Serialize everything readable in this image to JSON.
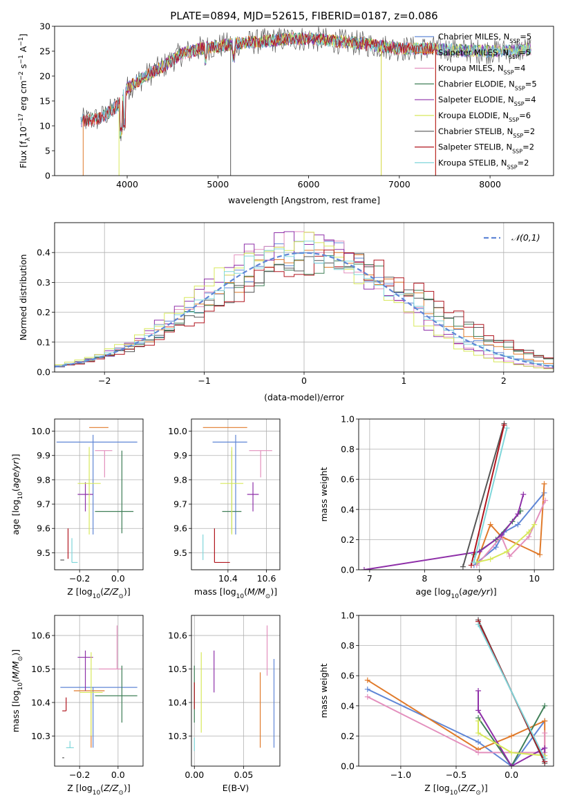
{
  "title": "PLATE=0894, MJD=52615, FIBERID=0187, z=0.086",
  "colors": {
    "chabrier_miles": "#5f86d6",
    "salpeter_miles": "#e07a2a",
    "kroupa_miles": "#e38fbd",
    "chabrier_elodie": "#3f7f57",
    "salpeter_elodie": "#8e2fa8",
    "kroupa_elodie": "#d7e85a",
    "chabrier_stelib": "#555555",
    "salpeter_stelib": "#b0151e",
    "kroupa_stelib": "#7fd6da",
    "normal_curve": "#5f86d6",
    "grid": "#b0b0b0"
  },
  "chart_data": [
    {
      "id": "spectrum",
      "type": "line",
      "title": "PLATE=0894, MJD=52615, FIBERID=0187, z=0.086",
      "xlabel": "wavelength [Angstrom, rest frame]",
      "ylabel": "Flux [f_λ10^-17 erg cm^-2 s^-1 A^-1]",
      "xlim": [
        3200,
        8700
      ],
      "ylim": [
        0,
        30
      ],
      "xticks": [
        4000,
        5000,
        6000,
        7000,
        8000
      ],
      "yticks": [
        0,
        5,
        10,
        15,
        20,
        25,
        30
      ],
      "grid": false,
      "legend_position": "right",
      "series": [
        {
          "name": "Chabrier MILES, N_SSP=5",
          "n_ssp": "5"
        },
        {
          "name": "Salpeter MILES, N_SSP=5",
          "n_ssp": "5"
        },
        {
          "name": "Kroupa MILES, N_SSP=4",
          "n_ssp": "4"
        },
        {
          "name": "Chabrier ELODIE, N_SSP=5",
          "n_ssp": "5"
        },
        {
          "name": "Salpeter ELODIE, N_SSP=4",
          "n_ssp": "4"
        },
        {
          "name": "Kroupa ELODIE, N_SSP=6",
          "n_ssp": "6"
        },
        {
          "name": "Chabrier STELIB, N_SSP=2",
          "n_ssp": "2"
        },
        {
          "name": "Salpeter STELIB, N_SSP=2",
          "n_ssp": "2"
        },
        {
          "name": "Kroupa STELIB, N_SSP=2",
          "n_ssp": "2"
        }
      ],
      "continuum": {
        "x": [
          3500,
          3700,
          3900,
          4000,
          4200,
          4400,
          4600,
          4800,
          5000,
          5200,
          5500,
          5800,
          6000,
          6300,
          6600,
          7000,
          7400,
          7800,
          8200,
          8450
        ],
        "y": [
          11,
          11.5,
          14,
          17.5,
          20,
          22,
          24.5,
          25.5,
          26,
          26.5,
          27,
          27.5,
          27.5,
          27,
          26.5,
          25.5,
          25.5,
          25,
          25,
          25.5
        ]
      },
      "gaps_x": [
        3510,
        3910,
        5140,
        6800,
        7400
      ]
    },
    {
      "id": "residuals",
      "type": "histogram",
      "xlabel": "(data-model)/error",
      "ylabel": "Normed distribution",
      "xlim": [
        -2.5,
        2.5
      ],
      "ylim": [
        0,
        0.5
      ],
      "xticks": [
        -2,
        -1,
        0,
        1,
        2
      ],
      "yticks": [
        0.0,
        0.1,
        0.2,
        0.3,
        0.4
      ],
      "grid": true,
      "legend_position": "top-right",
      "legend": "𝒩(0,1)",
      "bin_width": 0.1
    },
    {
      "id": "age_vs_Z",
      "type": "errorbar",
      "xlabel": "Z [log10(Z/Z⊙)]",
      "ylabel": "age  [log10(age/yr)]",
      "xlim": [
        -0.33,
        0.13
      ],
      "ylim": [
        9.43,
        10.05
      ],
      "xticks": [
        -0.2,
        0.0
      ],
      "yticks": [
        9.5,
        9.6,
        9.7,
        9.8,
        9.9,
        10.0
      ],
      "grid": true,
      "points": [
        {
          "x": -0.13,
          "y": 9.955,
          "xerr": [
            0.19,
            0.23
          ],
          "yerr": [
            0.38,
            0.03
          ],
          "color": "#5f86d6"
        },
        {
          "x": -0.11,
          "y": 10.015,
          "xerr": [
            0.04,
            0.06
          ],
          "yerr": [
            0.0,
            0.0
          ],
          "color": "#e07a2a"
        },
        {
          "x": -0.07,
          "y": 9.92,
          "xerr": [
            0.05,
            0.04
          ],
          "yerr": [
            0.11,
            0.0
          ],
          "color": "#e38fbd"
        },
        {
          "x": 0.02,
          "y": 9.67,
          "xerr": [
            0.14,
            0.06
          ],
          "yerr": [
            0.09,
            0.25
          ],
          "color": "#3f7f57"
        },
        {
          "x": -0.17,
          "y": 9.74,
          "xerr": [
            0.04,
            0.04
          ],
          "yerr": [
            0.07,
            0.05
          ],
          "color": "#8e2fa8"
        },
        {
          "x": -0.15,
          "y": 9.785,
          "xerr": [
            0.06,
            0.06
          ],
          "yerr": [
            0.21,
            0.15
          ],
          "color": "#d7e85a"
        },
        {
          "x": -0.28,
          "y": 9.47,
          "xerr": [
            0.02,
            0.0
          ],
          "yerr": [
            0.0,
            0.0
          ],
          "color": "#555555"
        },
        {
          "x": -0.26,
          "y": 9.475,
          "xerr": [
            0.0,
            0.0
          ],
          "yerr": [
            0.0,
            0.125
          ],
          "color": "#b0151e"
        },
        {
          "x": -0.24,
          "y": 9.46,
          "xerr": [
            0.0,
            0.03
          ],
          "yerr": [
            0.0,
            0.1
          ],
          "color": "#7fd6da"
        }
      ]
    },
    {
      "id": "age_vs_mass",
      "type": "errorbar",
      "xlabel": "mass [log10(M/M⊙)]",
      "ylabel": "",
      "xlim": [
        10.21,
        10.67
      ],
      "ylim": [
        9.43,
        10.05
      ],
      "xticks": [
        10.4,
        10.6
      ],
      "yticks": [
        9.5,
        9.6,
        9.7,
        9.8,
        9.9,
        10.0
      ],
      "grid": true,
      "points": [
        {
          "x": 10.44,
          "y": 9.955,
          "xerr": [
            0.12,
            0.06
          ],
          "yerr": [
            0.38,
            0.03
          ],
          "color": "#5f86d6"
        },
        {
          "x": 10.43,
          "y": 10.015,
          "xerr": [
            0.16,
            0.07
          ],
          "yerr": [
            0.0,
            0.0
          ],
          "color": "#e07a2a"
        },
        {
          "x": 10.57,
          "y": 9.92,
          "xerr": [
            0.06,
            0.06
          ],
          "yerr": [
            0.11,
            0.0
          ],
          "color": "#e38fbd"
        },
        {
          "x": 10.42,
          "y": 9.67,
          "xerr": [
            0.05,
            0.05
          ],
          "yerr": [
            0.09,
            0.25
          ],
          "color": "#3f7f57"
        },
        {
          "x": 10.53,
          "y": 9.74,
          "xerr": [
            0.03,
            0.03
          ],
          "yerr": [
            0.07,
            0.05
          ],
          "color": "#8e2fa8"
        },
        {
          "x": 10.42,
          "y": 9.785,
          "xerr": [
            0.06,
            0.06
          ],
          "yerr": [
            0.21,
            0.15
          ],
          "color": "#d7e85a"
        },
        {
          "x": 10.33,
          "y": 9.46,
          "xerr": [
            0.0,
            0.08
          ],
          "yerr": [
            0.0,
            0.14
          ],
          "color": "#b0151e"
        },
        {
          "x": 10.27,
          "y": 9.47,
          "xerr": [
            0.0,
            0.0
          ],
          "yerr": [
            0.0,
            0.105
          ],
          "color": "#7fd6da"
        }
      ]
    },
    {
      "id": "weight_vs_age",
      "type": "line",
      "xlabel": "age  [log10(age/yr)]",
      "ylabel": "mass weight",
      "xlim": [
        6.8,
        10.35
      ],
      "ylim": [
        0,
        1
      ],
      "xticks": [
        7,
        8,
        9,
        10
      ],
      "yticks": [
        0.0,
        0.2,
        0.4,
        0.6,
        0.8,
        1.0
      ],
      "grid": true,
      "series": [
        {
          "name": "Chabrier MILES",
          "x": [
            8.9,
            9.3,
            9.45,
            9.7,
            10.18
          ],
          "y": [
            0.03,
            0.15,
            0.25,
            0.3,
            0.51
          ]
        },
        {
          "name": "Salpeter MILES",
          "x": [
            8.95,
            9.2,
            9.4,
            10.1,
            10.18
          ],
          "y": [
            0.05,
            0.3,
            0.22,
            0.1,
            0.57
          ]
        },
        {
          "name": "Kroupa MILES",
          "x": [
            8.95,
            9.4,
            9.55,
            9.9,
            10.2
          ],
          "y": [
            0.03,
            0.22,
            0.09,
            0.22,
            0.46
          ]
        },
        {
          "name": "Chabrier ELODIE",
          "x": [
            8.9,
            9.3,
            9.6,
            9.75
          ],
          "y": [
            0.1,
            0.2,
            0.32,
            0.39
          ]
        },
        {
          "name": "Salpeter ELODIE",
          "x": [
            6.9,
            9.0,
            9.4,
            9.7,
            9.8
          ],
          "y": [
            0.0,
            0.12,
            0.23,
            0.37,
            0.5
          ]
        },
        {
          "name": "Kroupa ELODIE",
          "x": [
            8.95,
            9.2,
            9.5,
            9.9,
            10.0
          ],
          "y": [
            0.05,
            0.07,
            0.12,
            0.25,
            0.3
          ]
        },
        {
          "name": "Chabrier STELIB",
          "x": [
            8.7,
            9.45
          ],
          "y": [
            0.02,
            0.97
          ]
        },
        {
          "name": "Salpeter STELIB",
          "x": [
            8.85,
            9.45
          ],
          "y": [
            0.03,
            0.96
          ]
        },
        {
          "name": "Kroupa STELIB",
          "x": [
            8.9,
            9.5
          ],
          "y": [
            0.05,
            0.94
          ]
        }
      ]
    },
    {
      "id": "mass_vs_Z",
      "type": "errorbar",
      "xlabel": "Z [log10(Z/Z⊙)]",
      "ylabel": "mass [log10(M/M⊙)]",
      "xlim": [
        -0.33,
        0.13
      ],
      "ylim": [
        10.21,
        10.66
      ],
      "xticks": [
        -0.2,
        0.0
      ],
      "yticks": [
        10.3,
        10.4,
        10.5,
        10.6
      ],
      "grid": true,
      "points": [
        {
          "x": -0.13,
          "y": 10.445,
          "xerr": [
            0.17,
            0.23
          ],
          "yerr": [
            0.18,
            0.0
          ],
          "color": "#5f86d6"
        },
        {
          "x": -0.14,
          "y": 10.435,
          "xerr": [
            0.09,
            0.07
          ],
          "yerr": [
            0.17,
            0.0
          ],
          "color": "#e07a2a"
        },
        {
          "x": -0.005,
          "y": 10.5,
          "xerr": [
            0.095,
            0.025
          ],
          "yerr": [
            0.0,
            0.13
          ],
          "color": "#e38fbd"
        },
        {
          "x": 0.02,
          "y": 10.42,
          "xerr": [
            0.14,
            0.08
          ],
          "yerr": [
            0.08,
            0.09
          ],
          "color": "#3f7f57"
        },
        {
          "x": -0.17,
          "y": 10.535,
          "xerr": [
            0.04,
            0.04
          ],
          "yerr": [
            0.1,
            0.02
          ],
          "color": "#8e2fa8"
        },
        {
          "x": -0.14,
          "y": 10.43,
          "xerr": [
            0.06,
            0.06
          ],
          "yerr": [
            0.13,
            0.12
          ],
          "color": "#d7e85a"
        },
        {
          "x": -0.28,
          "y": 10.235,
          "xerr": [
            0.01,
            0.0
          ],
          "yerr": [
            0.0,
            0.0
          ],
          "color": "#555555"
        },
        {
          "x": -0.27,
          "y": 10.375,
          "xerr": [
            0.02,
            0.0
          ],
          "yerr": [
            0.0,
            0.04
          ],
          "color": "#b0151e"
        },
        {
          "x": -0.25,
          "y": 10.265,
          "xerr": [
            0.02,
            0.02
          ],
          "yerr": [
            0.0,
            0.02
          ],
          "color": "#7fd6da"
        }
      ]
    },
    {
      "id": "mass_vs_EBV",
      "type": "errorbar",
      "xlabel": "E(B-V)",
      "ylabel": "",
      "xlim": [
        -0.003,
        0.087
      ],
      "ylim": [
        10.21,
        10.66
      ],
      "xticks": [
        0.0,
        0.05
      ],
      "xtick_labels": [
        "0.00",
        "0.05"
      ],
      "yticks": [
        10.3,
        10.4,
        10.5,
        10.6
      ],
      "grid": true,
      "points": [
        {
          "x": 0.081,
          "y": 10.445,
          "xerr": [
            0,
            0
          ],
          "yerr": [
            0.18,
            0.085
          ],
          "color": "#5f86d6"
        },
        {
          "x": 0.067,
          "y": 10.435,
          "xerr": [
            0,
            0
          ],
          "yerr": [
            0.17,
            0.055
          ],
          "color": "#e07a2a"
        },
        {
          "x": 0.074,
          "y": 10.5,
          "xerr": [
            0,
            0
          ],
          "yerr": [
            0.02,
            0.13
          ],
          "color": "#e38fbd"
        },
        {
          "x": 0.0,
          "y": 10.42,
          "xerr": [
            0,
            0
          ],
          "yerr": [
            0.08,
            0.09
          ],
          "color": "#3f7f57"
        },
        {
          "x": 0.02,
          "y": 10.5,
          "xerr": [
            0,
            0
          ],
          "yerr": [
            0.07,
            0.055
          ],
          "color": "#8e2fa8"
        },
        {
          "x": 0.007,
          "y": 10.43,
          "xerr": [
            0,
            0
          ],
          "yerr": [
            0.12,
            0.12
          ],
          "color": "#d7e85a"
        },
        {
          "x": 0.0,
          "y": 10.42,
          "xerr": [
            0,
            0
          ],
          "yerr": [
            0.04,
            0.04
          ],
          "color": "#b0151e"
        },
        {
          "x": 0.0,
          "y": 10.275,
          "xerr": [
            0,
            0
          ],
          "yerr": [
            0.02,
            0.02
          ],
          "color": "#7fd6da"
        }
      ]
    },
    {
      "id": "weight_vs_Z",
      "type": "line",
      "xlabel": "Z [log10(Z/Z⊙)]",
      "ylabel": "mass weight",
      "xlim": [
        -1.38,
        0.38
      ],
      "ylim": [
        0,
        1
      ],
      "xticks": [
        -1.0,
        -0.5,
        0.0
      ],
      "xtick_labels": [
        "−1.0",
        "−0.5",
        "0.0"
      ],
      "yticks": [
        0.0,
        0.2,
        0.4,
        0.6,
        0.8,
        1.0
      ],
      "grid": true,
      "series": [
        {
          "name": "Chabrier MILES",
          "x": [
            -1.3,
            -0.3,
            0.0,
            0.3
          ],
          "y": [
            0.51,
            0.16,
            0.0,
            0.3
          ]
        },
        {
          "name": "Salpeter MILES",
          "x": [
            -1.3,
            -0.3,
            0.0,
            0.3,
            0.3
          ],
          "y": [
            0.57,
            0.11,
            0.2,
            0.3,
            0.05
          ]
        },
        {
          "name": "Kroupa MILES",
          "x": [
            -1.3,
            -0.3,
            0.0,
            0.3,
            0.3
          ],
          "y": [
            0.46,
            0.09,
            0.09,
            0.09,
            0.22
          ]
        },
        {
          "name": "Chabrier ELODIE",
          "x": [
            -0.3,
            0.0,
            0.3
          ],
          "y": [
            0.32,
            0.0,
            0.4
          ]
        },
        {
          "name": "Salpeter ELODIE",
          "x": [
            -0.3,
            -0.3,
            0.0,
            0.3,
            0.3
          ],
          "y": [
            0.5,
            0.37,
            0.0,
            0.12,
            0.03
          ]
        },
        {
          "name": "Kroupa ELODIE",
          "x": [
            -0.3,
            -0.3,
            0.0,
            0.3,
            0.3
          ],
          "y": [
            0.3,
            0.22,
            0.09,
            0.07,
            0.05
          ]
        },
        {
          "name": "Chabrier STELIB",
          "x": [
            -0.3,
            0.3
          ],
          "y": [
            0.97,
            0.02
          ]
        },
        {
          "name": "Salpeter STELIB",
          "x": [
            -0.3,
            0.3
          ],
          "y": [
            0.96,
            0.03
          ]
        },
        {
          "name": "Kroupa STELIB",
          "x": [
            -0.3,
            0.3
          ],
          "y": [
            0.94,
            0.05
          ]
        }
      ]
    }
  ]
}
